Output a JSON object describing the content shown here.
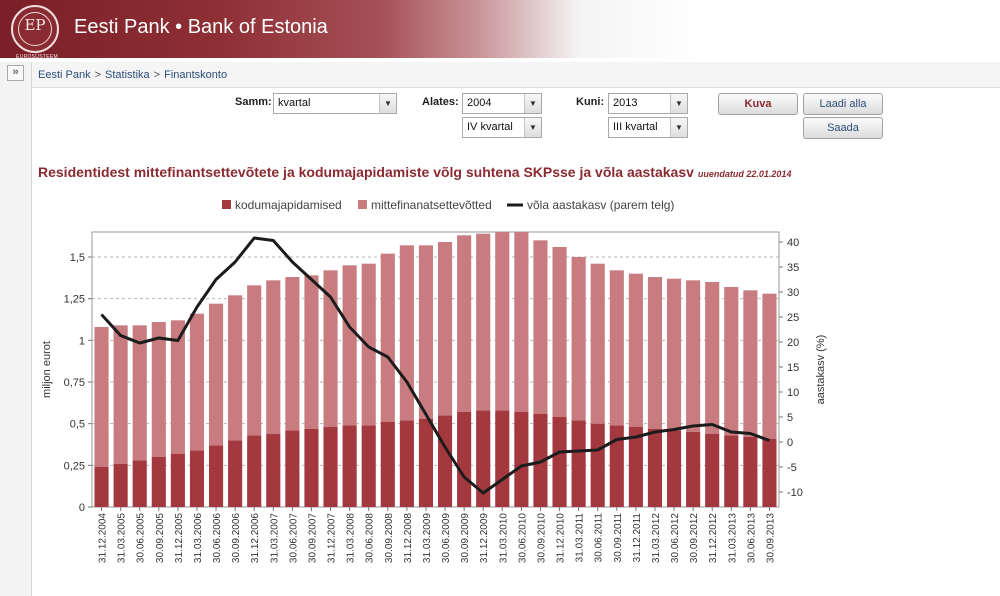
{
  "header": {
    "title": "Eesti Pank • Bank of Estonia",
    "logo_caption": "EUROSÜSTEEM",
    "logo_mark": "EP"
  },
  "breadcrumb": [
    "Eesti Pank",
    "Statistika",
    "Finantskonto"
  ],
  "controls": {
    "samm_label": "Samm:",
    "samm_value": "kvartal",
    "alates_label": "Alates:",
    "alates_year": "2004",
    "alates_quarter": "IV kvartal",
    "kuni_label": "Kuni:",
    "kuni_year": "2013",
    "kuni_quarter": "III kvartal",
    "kuva_label": "Kuva",
    "laadi_label": "Laadi alla",
    "saada_label": "Saada"
  },
  "colors": {
    "brand": "#8b2a30",
    "households": "#a3383e",
    "nonfin": "#c87c80",
    "line": "#1c1c1c"
  },
  "chart_data": {
    "type": "bar",
    "stacked": true,
    "title": "Residentidest mittefinantsettevõtete ja kodumajapidamiste võlg suhtena SKPsse ja võla aastakasv",
    "updated": "uuendatud 22.01.2014",
    "ylabel": "miljon eurot",
    "y2label": "aastakasv (%)",
    "ylim": [
      0,
      1.65
    ],
    "y2lim": [
      -13,
      42
    ],
    "yticks": [
      "0",
      "0,25",
      "0,5",
      "0,75",
      "1",
      "1,25",
      "1,5"
    ],
    "y2ticks": [
      "-10",
      "-5",
      "0",
      "5",
      "10",
      "15",
      "20",
      "25",
      "30",
      "35",
      "40"
    ],
    "legend_position": "top",
    "grid": "horizontal dashed",
    "categories": [
      "31.12.2004",
      "31.03.2005",
      "30.06.2005",
      "30.09.2005",
      "31.12.2005",
      "31.03.2006",
      "30.06.2006",
      "30.09.2006",
      "31.12.2006",
      "31.03.2007",
      "30.06.2007",
      "30.09.2007",
      "31.12.2007",
      "31.03.2008",
      "30.06.2008",
      "30.09.2008",
      "31.12.2008",
      "31.03.2009",
      "30.06.2009",
      "30.09.2009",
      "31.12.2009",
      "31.03.2010",
      "30.06.2010",
      "30.09.2010",
      "31.12.2010",
      "31.03.2011",
      "30.06.2011",
      "30.09.2011",
      "31.12.2011",
      "31.03.2012",
      "30.06.2012",
      "30.09.2012",
      "31.12.2012",
      "31.03.2013",
      "30.06.2013",
      "30.09.2013"
    ],
    "series": [
      {
        "name": "kodumajapidamised",
        "values": [
          0.24,
          0.26,
          0.28,
          0.3,
          0.32,
          0.34,
          0.37,
          0.4,
          0.43,
          0.44,
          0.46,
          0.47,
          0.48,
          0.49,
          0.49,
          0.51,
          0.52,
          0.53,
          0.55,
          0.57,
          0.58,
          0.58,
          0.57,
          0.56,
          0.54,
          0.52,
          0.5,
          0.49,
          0.48,
          0.47,
          0.46,
          0.45,
          0.44,
          0.43,
          0.42,
          0.41
        ]
      },
      {
        "name": "mittefinanatsettevõtted",
        "values": [
          0.84,
          0.83,
          0.81,
          0.81,
          0.8,
          0.82,
          0.85,
          0.87,
          0.9,
          0.92,
          0.92,
          0.92,
          0.94,
          0.96,
          0.97,
          1.01,
          1.05,
          1.04,
          1.04,
          1.06,
          1.06,
          1.07,
          1.08,
          1.04,
          1.02,
          0.98,
          0.96,
          0.93,
          0.92,
          0.91,
          0.91,
          0.91,
          0.91,
          0.89,
          0.88,
          0.87
        ]
      },
      {
        "name": "võla aastakasv (parem telg)",
        "type": "line",
        "axis": "right",
        "values": [
          25.5,
          21.3,
          19.8,
          20.8,
          20.3,
          27.0,
          32.5,
          36.0,
          40.8,
          40.3,
          36.0,
          32.5,
          29.0,
          23.0,
          19.0,
          17.0,
          12.0,
          5.5,
          -1.0,
          -7.0,
          -10.2,
          -7.5,
          -4.8,
          -4.0,
          -2.0,
          -1.8,
          -1.6,
          0.5,
          1.0,
          2.0,
          2.5,
          3.2,
          3.5,
          2.0,
          1.7,
          0.3
        ]
      }
    ]
  }
}
